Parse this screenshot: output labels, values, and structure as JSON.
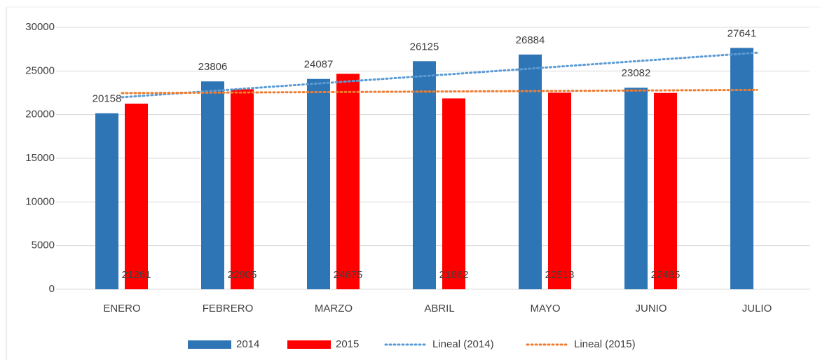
{
  "chart_data": {
    "type": "bar",
    "categories": [
      "ENERO",
      "FEBRERO",
      "MARZO",
      "ABRIL",
      "MAYO",
      "JUNIO",
      "JULIO"
    ],
    "series": [
      {
        "name": "2014",
        "color": "#2e75b6",
        "values": [
          20158,
          23806,
          24087,
          26125,
          26884,
          23082,
          27641
        ],
        "label_position": "outside_end",
        "trendline": {
          "name": "Lineal (2014)",
          "color": "#5b9bd5"
        }
      },
      {
        "name": "2015",
        "color": "#ff0000",
        "values": [
          21261,
          22905,
          24675,
          21862,
          22513,
          22485,
          null
        ],
        "label_position": "inside_base",
        "trendline": {
          "name": "Lineal (2015)",
          "color": "#ed7d31"
        }
      }
    ],
    "ylim": [
      0,
      30000
    ],
    "yticks": [
      0,
      5000,
      10000,
      15000,
      20000,
      25000,
      30000
    ],
    "grid": true,
    "legend": "bottom"
  }
}
